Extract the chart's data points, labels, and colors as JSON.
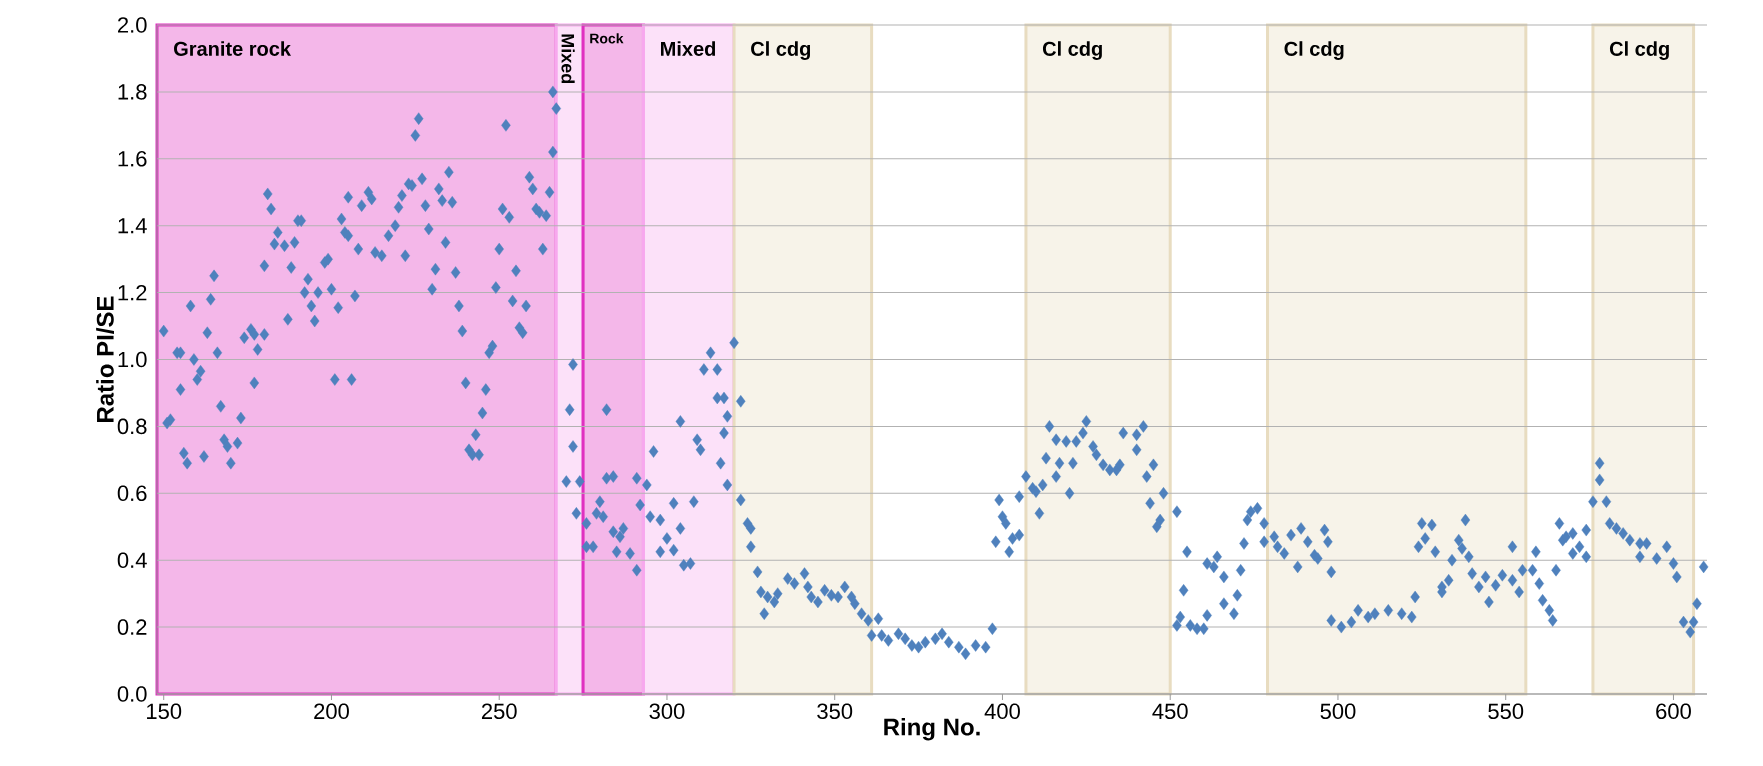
{
  "chart_data": {
    "type": "scatter",
    "xlabel": "Ring No.",
    "ylabel": "Ratio PI/SE",
    "xlim": [
      148,
      610
    ],
    "ylim": [
      0,
      2
    ],
    "xticks": [
      150,
      200,
      250,
      300,
      350,
      400,
      450,
      500,
      550,
      600
    ],
    "yticks": [
      {
        "value": 0,
        "label": "0.0"
      },
      0.2,
      0.4,
      0.6,
      0.8,
      {
        "value": 1,
        "label": "1.0"
      },
      1.2,
      1.4,
      1.6,
      1.8,
      {
        "value": 2,
        "label": "2.0"
      }
    ],
    "grid": "y",
    "marker": "diamond",
    "bands": [
      {
        "axis": "x",
        "from": 148,
        "to": 267,
        "label": "Granite rock",
        "color": "#e030c0"
      },
      {
        "axis": "x",
        "from": 267,
        "to": 275,
        "label": "Mixed",
        "color": "#f7a8ee"
      },
      {
        "axis": "x",
        "from": 275,
        "to": 293,
        "label": "Rock",
        "color": "#e030c0"
      },
      {
        "axis": "x",
        "from": 293,
        "to": 320,
        "label": "Mixed",
        "color": "#f7a8ee"
      },
      {
        "axis": "x",
        "from": 320,
        "to": 361,
        "label": "Cl cdg",
        "color": "#e8dcc0"
      },
      {
        "axis": "x",
        "from": 407,
        "to": 450,
        "label": "Cl cdg",
        "color": "#e8dcc0"
      },
      {
        "axis": "x",
        "from": 479,
        "to": 556,
        "label": "Cl cdg",
        "color": "#e8dcc0"
      },
      {
        "axis": "x",
        "from": 576,
        "to": 606,
        "label": "Cl cdg",
        "color": "#e8dcc0"
      }
    ],
    "series": [
      {
        "color": "#4f81bd",
        "x": [
          150,
          151,
          152,
          154,
          155,
          155,
          156,
          157,
          158,
          159,
          160,
          161,
          162,
          163,
          164,
          165,
          166,
          167,
          168,
          169,
          170,
          172,
          173,
          174,
          176,
          177,
          177,
          178,
          180,
          180,
          181,
          182,
          183,
          184,
          186,
          187,
          188,
          189,
          190,
          191,
          192,
          193,
          194,
          195,
          196,
          198,
          199,
          200,
          201,
          202,
          203,
          204,
          205,
          205,
          206,
          207,
          208,
          209,
          211,
          212,
          213,
          215,
          217,
          219,
          220,
          221,
          222,
          223,
          224,
          225,
          226,
          227,
          228,
          229,
          230,
          231,
          232,
          233,
          234,
          235,
          236,
          237,
          238,
          239,
          240,
          241,
          242,
          243,
          244,
          245,
          246,
          247,
          248,
          249,
          250,
          251,
          252,
          253,
          254,
          255,
          256,
          257,
          258,
          259,
          260,
          261,
          262,
          263,
          264,
          265,
          266,
          266,
          267,
          270,
          271,
          272,
          272,
          273,
          274,
          276,
          276,
          278,
          279,
          280,
          281,
          282,
          282,
          284,
          284,
          285,
          286,
          287,
          289,
          291,
          291,
          292,
          294,
          295,
          296,
          298,
          298,
          300,
          302,
          302,
          304,
          304,
          305,
          307,
          308,
          309,
          310,
          311,
          313,
          315,
          315,
          316,
          317,
          317,
          318,
          318,
          320,
          322,
          322,
          324,
          325,
          325,
          327,
          328,
          329,
          330,
          332,
          333,
          336,
          338,
          341,
          342,
          343,
          345,
          347,
          349,
          351,
          353,
          355,
          356,
          358,
          360,
          361,
          363,
          364,
          366,
          369,
          371,
          373,
          375,
          377,
          380,
          382,
          384,
          387,
          389,
          392,
          395,
          397,
          398,
          399,
          400,
          401,
          402,
          403,
          405,
          405,
          407,
          409,
          410,
          411,
          412,
          413,
          414,
          416,
          416,
          417,
          419,
          420,
          421,
          422,
          424,
          425,
          427,
          428,
          430,
          432,
          434,
          435,
          436,
          440,
          440,
          442,
          443,
          444,
          445,
          446,
          447,
          448,
          452,
          452,
          453,
          454,
          455,
          456,
          458,
          460,
          461,
          461,
          463,
          464,
          466,
          466,
          469,
          470,
          471,
          472,
          473,
          474,
          476,
          478,
          478,
          481,
          482,
          484,
          486,
          488,
          489,
          491,
          493,
          494,
          496,
          497,
          498,
          498,
          501,
          504,
          506,
          509,
          511,
          515,
          519,
          522,
          523,
          524,
          525,
          526,
          528,
          529,
          531,
          531,
          533,
          534,
          536,
          537,
          538,
          539,
          540,
          542,
          544,
          545,
          547,
          549,
          552,
          552,
          554,
          555,
          558,
          559,
          560,
          561,
          563,
          564,
          565,
          566,
          567,
          568,
          570,
          570,
          572,
          574,
          574,
          576,
          578,
          578,
          580,
          581,
          583,
          585,
          587,
          590,
          590,
          592,
          595,
          598,
          600,
          601,
          603,
          605,
          606,
          607,
          609
        ],
        "values": [
          1.085,
          0.81,
          0.82,
          1.02,
          1.02,
          0.91,
          0.72,
          0.69,
          1.16,
          1.0,
          0.94,
          0.965,
          0.71,
          1.08,
          1.18,
          1.25,
          1.02,
          0.86,
          0.76,
          0.74,
          0.69,
          0.75,
          0.825,
          1.065,
          1.09,
          1.075,
          0.93,
          1.03,
          1.075,
          1.28,
          1.495,
          1.45,
          1.345,
          1.38,
          1.34,
          1.12,
          1.275,
          1.35,
          1.415,
          1.415,
          1.2,
          1.24,
          1.16,
          1.115,
          1.2,
          1.29,
          1.3,
          1.21,
          0.94,
          1.155,
          1.42,
          1.38,
          1.37,
          1.485,
          0.94,
          1.19,
          1.33,
          1.46,
          1.5,
          1.48,
          1.32,
          1.31,
          1.37,
          1.4,
          1.455,
          1.49,
          1.31,
          1.525,
          1.52,
          1.67,
          1.72,
          1.54,
          1.46,
          1.39,
          1.21,
          1.27,
          1.51,
          1.475,
          1.35,
          1.56,
          1.47,
          1.26,
          1.16,
          1.085,
          0.93,
          0.73,
          0.715,
          0.775,
          0.715,
          0.84,
          0.91,
          1.02,
          1.04,
          1.215,
          1.33,
          1.45,
          1.7,
          1.425,
          1.175,
          1.265,
          1.095,
          1.08,
          1.16,
          1.545,
          1.51,
          1.45,
          1.44,
          1.33,
          1.43,
          1.5,
          1.62,
          1.8,
          1.75,
          0.635,
          0.85,
          0.985,
          0.74,
          0.54,
          0.635,
          0.51,
          0.44,
          0.44,
          0.54,
          0.575,
          0.53,
          0.645,
          0.85,
          0.65,
          0.485,
          0.425,
          0.47,
          0.495,
          0.42,
          0.37,
          0.645,
          0.565,
          0.625,
          0.53,
          0.725,
          0.52,
          0.425,
          0.465,
          0.43,
          0.57,
          0.495,
          0.815,
          0.385,
          0.39,
          0.575,
          0.76,
          0.73,
          0.97,
          1.02,
          0.97,
          0.885,
          0.69,
          0.885,
          0.78,
          0.83,
          0.625,
          1.05,
          0.875,
          0.58,
          0.51,
          0.495,
          0.44,
          0.365,
          0.305,
          0.24,
          0.29,
          0.275,
          0.3,
          0.345,
          0.33,
          0.36,
          0.32,
          0.29,
          0.275,
          0.31,
          0.295,
          0.29,
          0.32,
          0.29,
          0.27,
          0.24,
          0.22,
          0.175,
          0.225,
          0.175,
          0.16,
          0.18,
          0.165,
          0.145,
          0.14,
          0.155,
          0.165,
          0.18,
          0.155,
          0.14,
          0.12,
          0.145,
          0.14,
          0.195,
          0.455,
          0.58,
          0.53,
          0.51,
          0.425,
          0.465,
          0.475,
          0.59,
          0.65,
          0.615,
          0.605,
          0.54,
          0.625,
          0.705,
          0.8,
          0.76,
          0.65,
          0.69,
          0.755,
          0.6,
          0.69,
          0.755,
          0.78,
          0.815,
          0.74,
          0.715,
          0.685,
          0.67,
          0.67,
          0.685,
          0.78,
          0.775,
          0.73,
          0.8,
          0.65,
          0.57,
          0.685,
          0.5,
          0.52,
          0.6,
          0.545,
          0.205,
          0.23,
          0.31,
          0.425,
          0.205,
          0.195,
          0.195,
          0.235,
          0.39,
          0.38,
          0.41,
          0.35,
          0.27,
          0.24,
          0.295,
          0.37,
          0.45,
          0.52,
          0.545,
          0.555,
          0.51,
          0.455,
          0.47,
          0.44,
          0.42,
          0.475,
          0.38,
          0.495,
          0.455,
          0.415,
          0.405,
          0.49,
          0.455,
          0.365,
          0.22,
          0.2,
          0.215,
          0.25,
          0.23,
          0.24,
          0.25,
          0.24,
          0.23,
          0.29,
          0.44,
          0.51,
          0.465,
          0.505,
          0.425,
          0.32,
          0.305,
          0.34,
          0.4,
          0.46,
          0.435,
          0.52,
          0.41,
          0.36,
          0.32,
          0.35,
          0.275,
          0.325,
          0.355,
          0.34,
          0.44,
          0.305,
          0.37,
          0.37,
          0.425,
          0.33,
          0.28,
          0.25,
          0.22,
          0.37,
          0.51,
          0.46,
          0.47,
          0.42,
          0.48,
          0.44,
          0.41,
          0.49,
          0.575,
          0.64,
          0.69,
          0.575,
          0.51,
          0.495,
          0.48,
          0.46,
          0.45,
          0.41,
          0.45,
          0.405,
          0.44,
          0.39,
          0.35,
          0.215,
          0.185,
          0.215,
          0.27,
          0.38
        ]
      }
    ]
  }
}
